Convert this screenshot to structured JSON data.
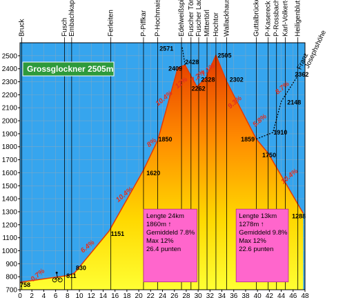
{
  "chart_data": {
    "type": "area",
    "title": "Grossglockner 2505m",
    "xlim": [
      0,
      48
    ],
    "ylim": [
      700,
      2600
    ],
    "x_ticks": [
      0,
      2,
      4,
      6,
      8,
      10,
      12,
      14,
      16,
      18,
      20,
      22,
      24,
      26,
      28,
      30,
      32,
      34,
      36,
      38,
      40,
      42,
      44,
      46,
      48
    ],
    "y_ticks": [
      700,
      800,
      900,
      1000,
      1100,
      1200,
      1300,
      1400,
      1500,
      1600,
      1700,
      1800,
      1900,
      2000,
      2100,
      2200,
      2300,
      2400,
      2500
    ],
    "profile": [
      {
        "x": 0,
        "y": 758
      },
      {
        "x": 8.3,
        "y": 811
      },
      {
        "x": 9.2,
        "y": 830
      },
      {
        "x": 15,
        "y": 1151
      },
      {
        "x": 20.8,
        "y": 1620
      },
      {
        "x": 23.2,
        "y": 1850
      },
      {
        "x": 26.6,
        "y": 2409
      },
      {
        "x": 27.8,
        "y": 2428
      },
      {
        "x": 29.8,
        "y": 2262
      },
      {
        "x": 31.3,
        "y": 2328
      },
      {
        "x": 33,
        "y": 2505
      },
      {
        "x": 34.8,
        "y": 2302
      },
      {
        "x": 39.8,
        "y": 1859
      },
      {
        "x": 41.8,
        "y": 1750
      },
      {
        "x": 47.7,
        "y": 1288
      }
    ],
    "branches": [
      {
        "points": [
          {
            "x": 27.8,
            "y": 2428
          },
          {
            "x": 27.3,
            "y": 2571
          }
        ],
        "style": "dotted"
      },
      {
        "points": [
          {
            "x": 39.8,
            "y": 1859
          },
          {
            "x": 42.6,
            "y": 1910
          },
          {
            "x": 44,
            "y": 2148
          },
          {
            "x": 47,
            "y": 2362
          }
        ],
        "style": "dotted"
      }
    ],
    "places": [
      {
        "x": 0.3,
        "name": "Bruck"
      },
      {
        "x": 7.5,
        "name": "Fusch"
      },
      {
        "x": 8.7,
        "name": "Embachkapelle"
      },
      {
        "x": 15.3,
        "name": "Ferleiten"
      },
      {
        "x": 20.8,
        "name": "P-Piffkar"
      },
      {
        "x": 23.2,
        "name": "P-Hochmais"
      },
      {
        "x": 27.2,
        "name": "Edelweißspitze"
      },
      {
        "x": 28.8,
        "name": "Fuscher Törl"
      },
      {
        "x": 30.1,
        "name": "Fuscher Lacke"
      },
      {
        "x": 31.5,
        "name": "Mittertörl"
      },
      {
        "x": 33,
        "name": "Hochtor"
      },
      {
        "x": 34.8,
        "name": "Wallackhaus"
      },
      {
        "x": 39.8,
        "name": "Guttalbrücke"
      },
      {
        "x": 41.8,
        "name": "P-Kasereck"
      },
      {
        "x": 43.2,
        "name": "P-Rossbach"
      },
      {
        "x": 44.7,
        "name": "Karl-Volkert-Haus"
      },
      {
        "x": 46.8,
        "name": "Heiligenblut"
      }
    ],
    "elevation_labels": [
      {
        "x": 0,
        "y": 720,
        "text": "758"
      },
      {
        "x": 7.8,
        "y": 790,
        "text": "811"
      },
      {
        "x": 9.4,
        "y": 850,
        "text": "830"
      },
      {
        "x": 15.3,
        "y": 1115,
        "text": "1151"
      },
      {
        "x": 21.3,
        "y": 1580,
        "text": "1620"
      },
      {
        "x": 23.3,
        "y": 1840,
        "text": "1850"
      },
      {
        "x": 23.5,
        "y": 2540,
        "text": "2571"
      },
      {
        "x": 25,
        "y": 2385,
        "text": "2409"
      },
      {
        "x": 27.8,
        "y": 2435,
        "text": "2428"
      },
      {
        "x": 28.9,
        "y": 2230,
        "text": "2262"
      },
      {
        "x": 30.5,
        "y": 2300,
        "text": "2328"
      },
      {
        "x": 33.3,
        "y": 2485,
        "text": "2505"
      },
      {
        "x": 35.3,
        "y": 2300,
        "text": "2302"
      },
      {
        "x": 37.2,
        "y": 1840,
        "text": "1859"
      },
      {
        "x": 42.7,
        "y": 1895,
        "text": "1910"
      },
      {
        "x": 40.8,
        "y": 1720,
        "text": "1750"
      },
      {
        "x": 45,
        "y": 2125,
        "text": "2148"
      },
      {
        "x": 46.3,
        "y": 2340,
        "text": "2362"
      },
      {
        "x": 45.8,
        "y": 1250,
        "text": "1288"
      }
    ],
    "franz_label": "Franz Josephshöhe",
    "gradients": [
      {
        "x": 3.2,
        "y": 800,
        "text": "0.7%"
      },
      {
        "x": 11.6,
        "y": 1020,
        "text": "6.4%"
      },
      {
        "x": 17.8,
        "y": 1420,
        "text": "10.4%"
      },
      {
        "x": 22.4,
        "y": 1820,
        "text": "8%"
      },
      {
        "x": 24.5,
        "y": 2160,
        "text": "10.4%"
      },
      {
        "x": 27.4,
        "y": 2280,
        "text": "12%"
      },
      {
        "x": 30.2,
        "y": 2330,
        "text": "7.2%"
      },
      {
        "x": 31.9,
        "y": 2380,
        "text": "7.1%"
      },
      {
        "x": 36.4,
        "y": 2130,
        "text": "9.3%"
      },
      {
        "x": 40.6,
        "y": 1990,
        "text": "5.8%"
      },
      {
        "x": 44.4,
        "y": 2240,
        "text": "8.7%"
      },
      {
        "x": 45.6,
        "y": 1560,
        "text": "10.4%"
      }
    ],
    "info_boxes": [
      {
        "x1": 20.8,
        "x2": 29.8,
        "y_top": 1320,
        "y_bottom": 760,
        "lines": [
          "Lengte 24km",
          "1860m ↑",
          "Gemiddeld 7.8%",
          "Max 12%",
          "26.4 punten"
        ]
      },
      {
        "x1": 36.4,
        "x2": 45.2,
        "y_top": 1320,
        "y_bottom": 760,
        "lines": [
          "Lengte 13km",
          "1278m ↑",
          "Gemiddeld 9.8%",
          "Max 12%",
          "22.6 punten"
        ]
      }
    ],
    "grid": true
  }
}
